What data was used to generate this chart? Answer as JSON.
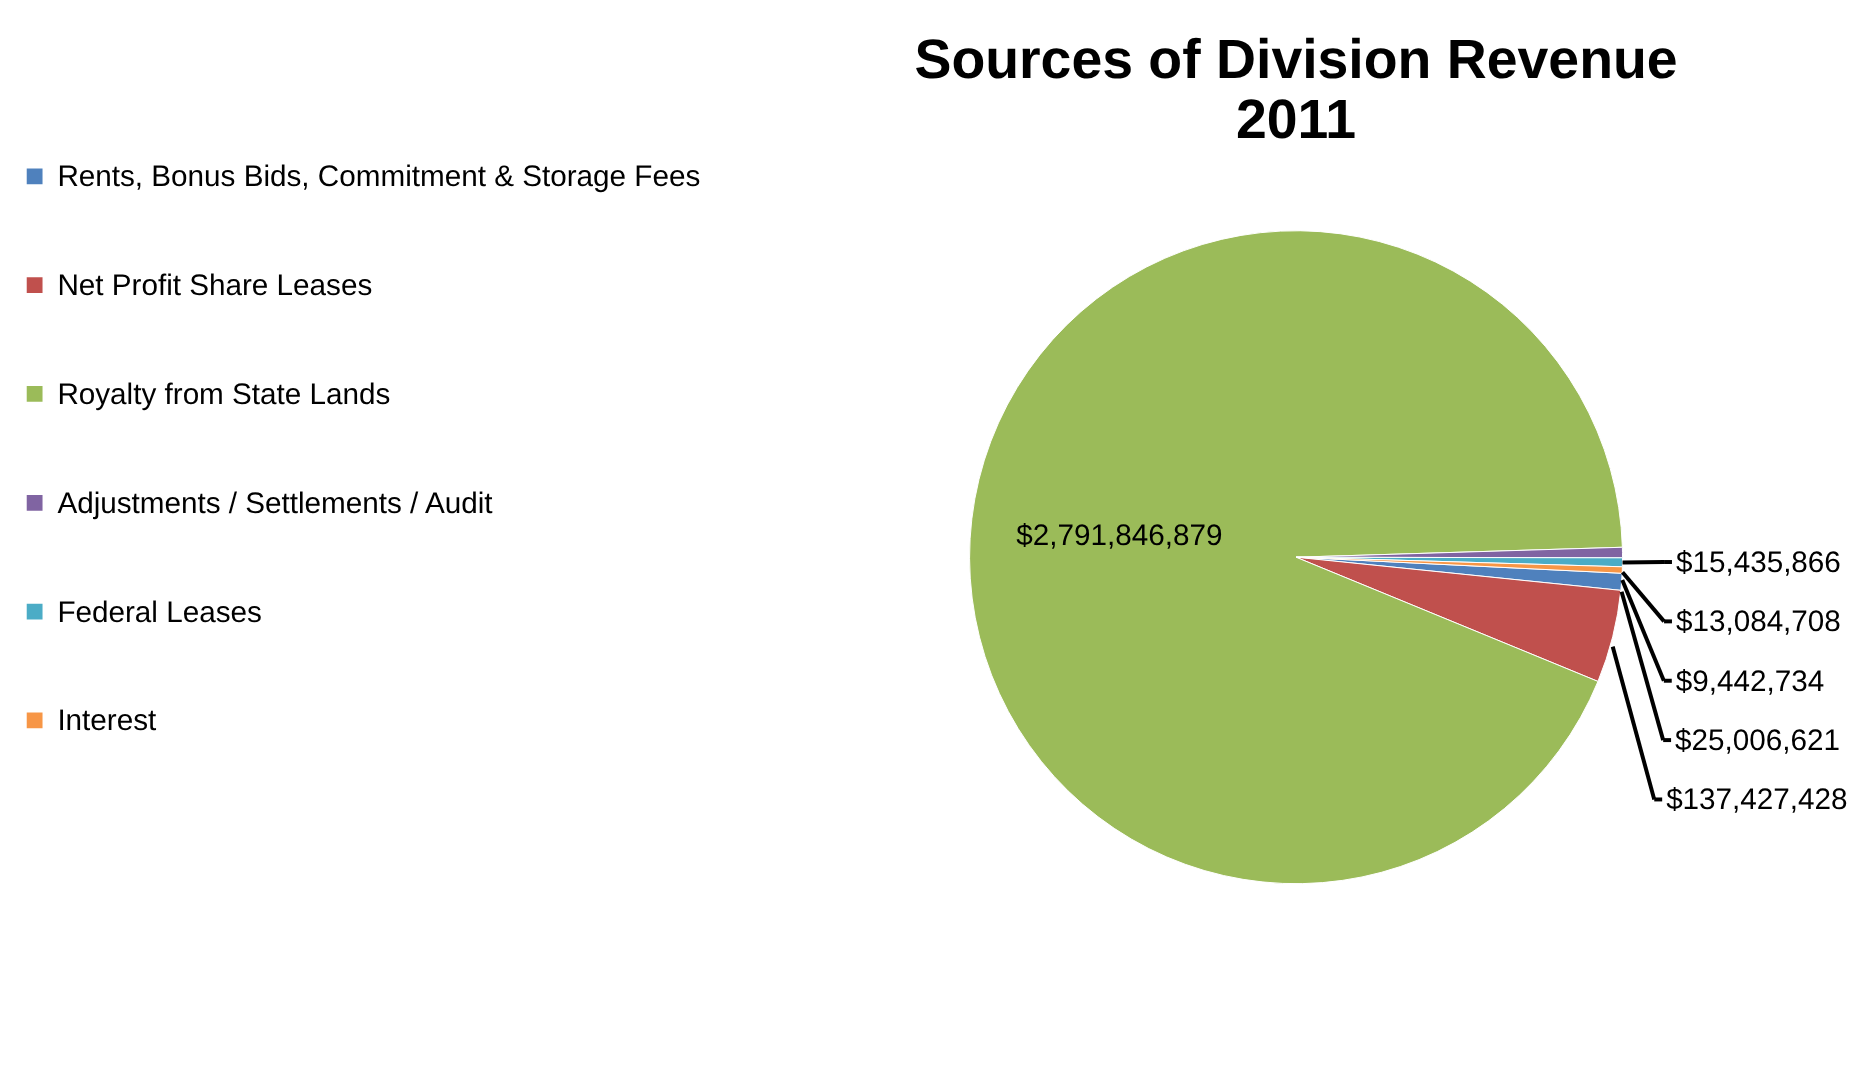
{
  "chart_data": {
    "type": "pie",
    "title": "Sources of Division Revenue\n2011",
    "categories": [
      "Rents, Bonus Bids, Commitment & Storage Fees",
      "Net Profit Share Leases",
      "Royalty from State Lands",
      "Adjustments / Settlements / Audit",
      "Federal Leases",
      "Interest"
    ],
    "values": [
      25006621,
      137427428,
      2791846879,
      15435866,
      13084708,
      9442734
    ],
    "colors": [
      "#4f81bd",
      "#c0504d",
      "#9bbb59",
      "#8064a2",
      "#4bacc6",
      "#f79646"
    ],
    "value_labels": [
      "$25,006,621",
      "$137,427,428",
      "$2,791,846,879",
      "$15,435,866",
      "$13,084,708",
      "$9,442,734"
    ],
    "legend": "left"
  }
}
